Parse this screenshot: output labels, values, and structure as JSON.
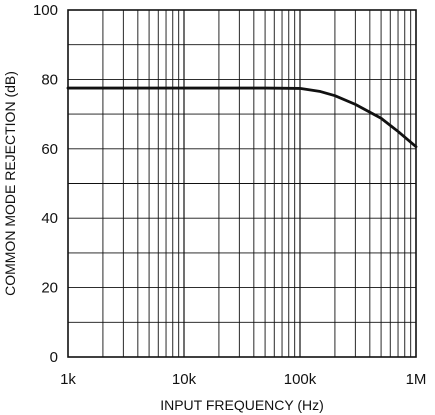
{
  "chart_data": {
    "type": "line",
    "xlabel": "INPUT FREQUENCY (Hz)",
    "ylabel": "COMMON MODE REJECTION (dB)",
    "x_scale": "log",
    "xlim": [
      1000,
      1000000
    ],
    "ylim": [
      0,
      100
    ],
    "x_ticks": [
      {
        "value": 1000,
        "label": "1k"
      },
      {
        "value": 10000,
        "label": "10k"
      },
      {
        "value": 100000,
        "label": "100k"
      },
      {
        "value": 1000000,
        "label": "1M"
      }
    ],
    "y_ticks": [
      {
        "value": 0,
        "label": "0"
      },
      {
        "value": 20,
        "label": "20"
      },
      {
        "value": 40,
        "label": "40"
      },
      {
        "value": 60,
        "label": "60"
      },
      {
        "value": 80,
        "label": "80"
      },
      {
        "value": 100,
        "label": "100"
      }
    ],
    "grid": true,
    "series": [
      {
        "x": [
          1000,
          10000,
          50000,
          100000,
          150000,
          200000,
          300000,
          500000,
          700000,
          1000000
        ],
        "y": [
          77.5,
          77.5,
          77.5,
          77.4,
          76.5,
          75.3,
          72.8,
          68.8,
          65.0,
          60.6
        ]
      }
    ],
    "colors": {
      "line": "#111111",
      "grid": "#111111",
      "background": "#ffffff"
    }
  }
}
